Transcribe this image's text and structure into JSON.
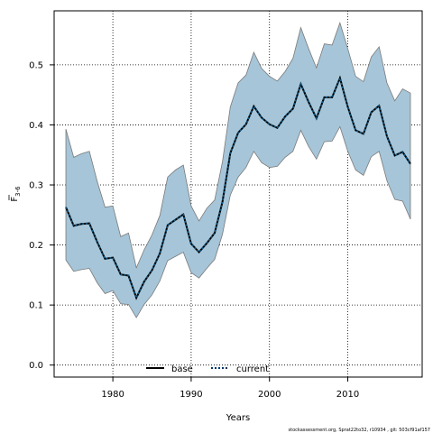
{
  "chart_data": {
    "type": "line",
    "xlabel": "Years",
    "ylabel_main": "F",
    "ylabel_sub": "3-6",
    "xlim": [
      1972.5,
      2019.5
    ],
    "ylim": [
      -0.02,
      0.59
    ],
    "x_ticks": [
      1980,
      1990,
      2000,
      2010
    ],
    "y_ticks": [
      0.0,
      0.1,
      0.2,
      0.3,
      0.4,
      0.5
    ],
    "y_tick_labels": [
      "0.0",
      "0.1",
      "0.2",
      "0.3",
      "0.4",
      "0.5"
    ],
    "grid": true,
    "legend_position": "bottom-center",
    "legend": [
      {
        "name": "base",
        "style": "solid",
        "color": "#000000"
      },
      {
        "name": "current",
        "style": "dotted",
        "color": "#003366"
      }
    ],
    "band_color": "#a6c5d8",
    "band_edge_color": "#7a7a7a",
    "years": [
      1974,
      1975,
      1976,
      1977,
      1978,
      1979,
      1980,
      1981,
      1982,
      1983,
      1984,
      1985,
      1986,
      1987,
      1988,
      1989,
      1990,
      1991,
      1992,
      1993,
      1994,
      1995,
      1996,
      1997,
      1998,
      1999,
      2000,
      2001,
      2002,
      2003,
      2004,
      2005,
      2006,
      2007,
      2008,
      2009,
      2010,
      2011,
      2012,
      2013,
      2014,
      2015,
      2016,
      2017,
      2018
    ],
    "series": [
      {
        "name": "current",
        "values": [
          0.263,
          0.232,
          0.235,
          0.236,
          0.205,
          0.177,
          0.179,
          0.151,
          0.149,
          0.112,
          0.139,
          0.158,
          0.186,
          0.233,
          0.242,
          0.251,
          0.202,
          0.188,
          0.203,
          0.22,
          0.272,
          0.353,
          0.387,
          0.401,
          0.431,
          0.412,
          0.401,
          0.395,
          0.414,
          0.427,
          0.468,
          0.438,
          0.411,
          0.446,
          0.446,
          0.478,
          0.43,
          0.391,
          0.385,
          0.421,
          0.432,
          0.381,
          0.349,
          0.355,
          0.335
        ]
      }
    ],
    "band_upper": [
      0.393,
      0.346,
      0.352,
      0.356,
      0.306,
      0.263,
      0.265,
      0.214,
      0.22,
      0.162,
      0.192,
      0.217,
      0.249,
      0.313,
      0.325,
      0.333,
      0.265,
      0.24,
      0.261,
      0.275,
      0.339,
      0.43,
      0.47,
      0.483,
      0.521,
      0.494,
      0.481,
      0.473,
      0.489,
      0.511,
      0.562,
      0.527,
      0.495,
      0.535,
      0.533,
      0.57,
      0.527,
      0.481,
      0.472,
      0.513,
      0.53,
      0.47,
      0.44,
      0.46,
      0.453
    ],
    "band_lower": [
      0.175,
      0.156,
      0.159,
      0.161,
      0.137,
      0.119,
      0.124,
      0.102,
      0.101,
      0.079,
      0.101,
      0.117,
      0.14,
      0.174,
      0.181,
      0.188,
      0.154,
      0.145,
      0.161,
      0.176,
      0.218,
      0.283,
      0.313,
      0.329,
      0.356,
      0.337,
      0.329,
      0.331,
      0.346,
      0.356,
      0.391,
      0.364,
      0.343,
      0.372,
      0.373,
      0.397,
      0.356,
      0.325,
      0.316,
      0.347,
      0.356,
      0.307,
      0.276,
      0.273,
      0.243
    ]
  },
  "footer_note": "stockassessment.org, Sprat22to32, r10934 , git: 503cf91af157"
}
